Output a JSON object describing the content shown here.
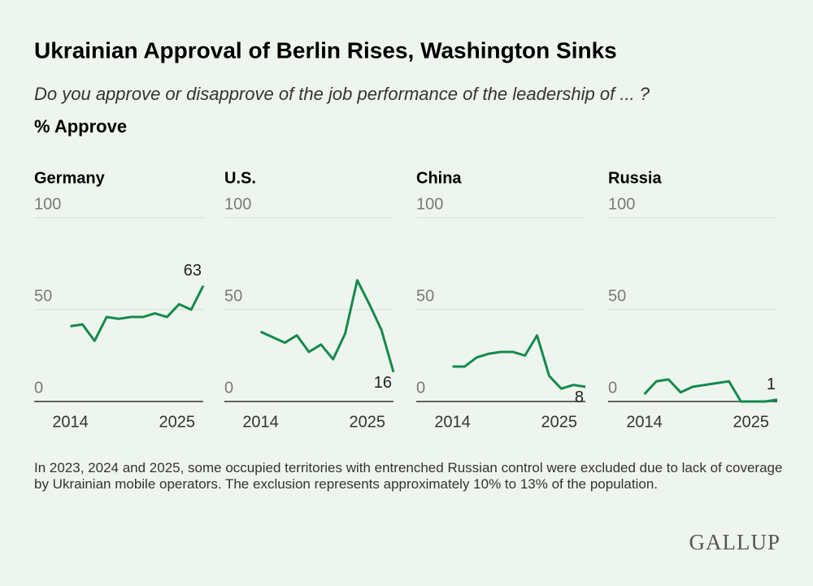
{
  "title": "Ukrainian Approval of Berlin Rises, Washington Sinks",
  "subtitle": "Do you approve or disapprove of the job performance of the leadership of ... ?",
  "measure": "% Approve",
  "footnote": "In 2023, 2024 and 2025, some occupied territories with entrenched Russian control were excluded due to lack of coverage by Ukrainian mobile operators. The exclusion represents approximately 10% to 13% of the population.",
  "logo": "GALLUP",
  "chart_data": [
    {
      "type": "line",
      "title": "Germany",
      "color": "#148a4c",
      "x": [
        2014,
        2015,
        2016,
        2017,
        2018,
        2019,
        2020,
        2021,
        2022,
        2023,
        2024,
        2025
      ],
      "values": [
        41,
        42,
        33,
        46,
        45,
        46,
        46,
        48,
        46,
        53,
        50,
        63
      ],
      "xlim": [
        2011,
        2025
      ],
      "xticks": [
        2014,
        2025
      ],
      "ylim": [
        0,
        100
      ],
      "yticks": [
        0,
        50,
        100
      ],
      "grid": true
    },
    {
      "type": "line",
      "title": "U.S.",
      "color": "#148a4c",
      "x": [
        2014,
        2015,
        2016,
        2017,
        2018,
        2019,
        2020,
        2021,
        2022,
        2023,
        2024,
        2025
      ],
      "values": [
        38,
        35,
        32,
        36,
        27,
        31,
        23,
        37,
        66,
        53,
        39,
        16
      ],
      "xlim": [
        2011,
        2025
      ],
      "xticks": [
        2014,
        2025
      ],
      "ylim": [
        0,
        100
      ],
      "yticks": [
        0,
        50,
        100
      ],
      "grid": true
    },
    {
      "type": "line",
      "title": "China",
      "color": "#148a4c",
      "x": [
        2014,
        2015,
        2016,
        2017,
        2018,
        2019,
        2020,
        2021,
        2022,
        2023,
        2024,
        2025
      ],
      "values": [
        19,
        19,
        24,
        26,
        27,
        27,
        25,
        36,
        14,
        7,
        9,
        8
      ],
      "xlim": [
        2011,
        2025
      ],
      "xticks": [
        2014,
        2025
      ],
      "ylim": [
        0,
        100
      ],
      "yticks": [
        0,
        50,
        100
      ],
      "grid": true
    },
    {
      "type": "line",
      "title": "Russia",
      "color": "#148a4c",
      "x": [
        2014,
        2015,
        2016,
        2017,
        2018,
        2019,
        2020,
        2021,
        2022,
        2023,
        2024,
        2025
      ],
      "values": [
        4,
        11,
        12,
        5,
        8,
        9,
        10,
        11,
        0,
        0,
        0,
        1
      ],
      "xlim": [
        2011,
        2025
      ],
      "xticks": [
        2014,
        2025
      ],
      "ylim": [
        0,
        100
      ],
      "yticks": [
        0,
        50,
        100
      ],
      "grid": true
    }
  ]
}
